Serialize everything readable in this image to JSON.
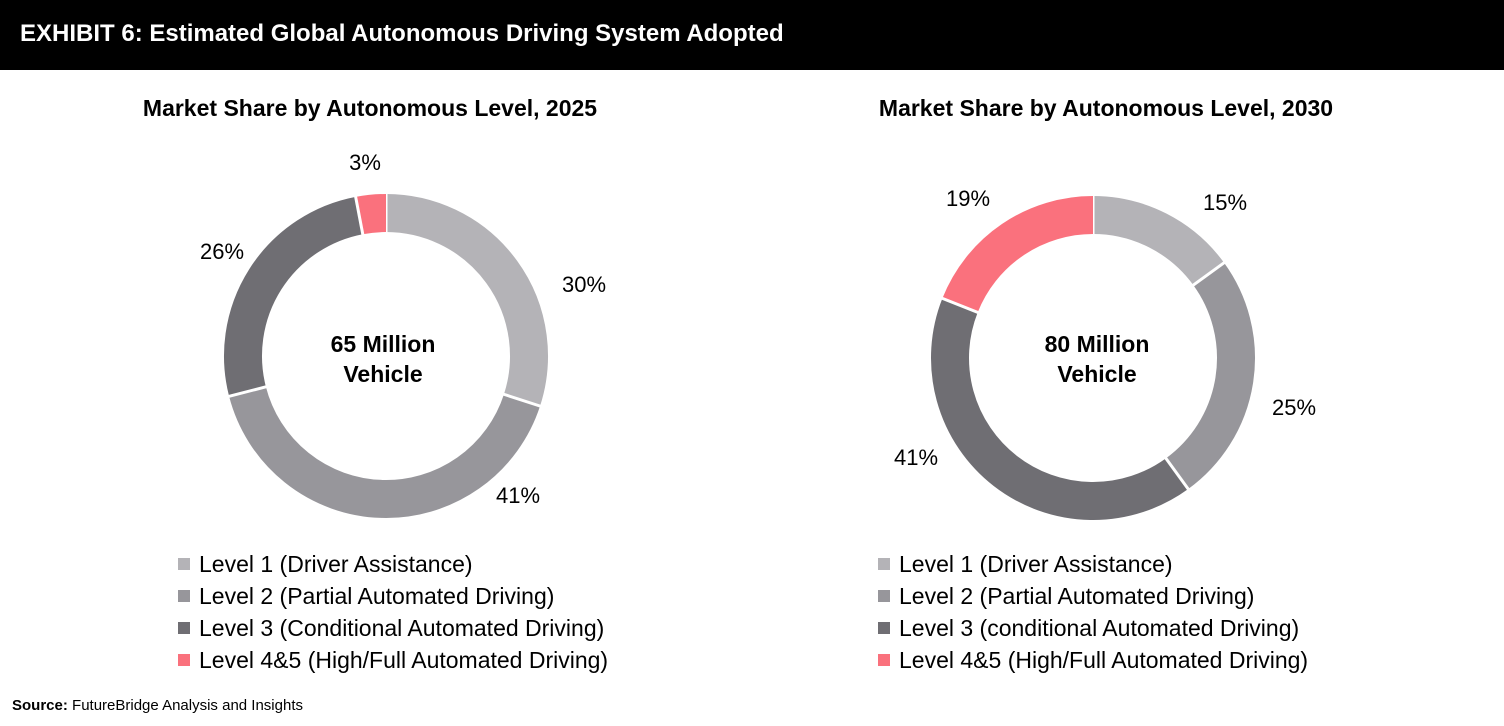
{
  "header": {
    "title": "EXHIBIT 6: Estimated Global Autonomous Driving System Adopted"
  },
  "source": {
    "label": "Source:",
    "text": "FutureBridge Analysis and Insights"
  },
  "chart_data": [
    {
      "type": "pie",
      "title": "Market Share by Autonomous Level, 2025",
      "center_label": [
        "65 Million",
        "Vehicle"
      ],
      "categories": [
        "Level 1 (Driver Assistance)",
        "Level 2 (Partial Automated Driving)",
        "Level 3 (Conditional Automated Driving)",
        "Level 4&5 (High/Full Automated Driving)"
      ],
      "values": [
        30,
        41,
        26,
        3
      ],
      "value_labels": [
        "30%",
        "41%",
        "26%",
        "3%"
      ],
      "colors": [
        "#b4b3b7",
        "#97969b",
        "#6f6e73",
        "#fa717d"
      ],
      "legend_position": "bottom"
    },
    {
      "type": "pie",
      "title": "Market Share by Autonomous Level, 2030",
      "center_label": [
        "80 Million",
        "Vehicle"
      ],
      "categories": [
        "Level 1 (Driver Assistance)",
        "Level 2 (Partial Automated Driving)",
        "Level 3 (conditional Automated Driving)",
        "Level 4&5 (High/Full Automated Driving)"
      ],
      "values": [
        15,
        25,
        41,
        19
      ],
      "value_labels": [
        "15%",
        "25%",
        "41%",
        "19%"
      ],
      "colors": [
        "#b4b3b7",
        "#97969b",
        "#6f6e73",
        "#fa717d"
      ],
      "legend_position": "bottom"
    }
  ]
}
